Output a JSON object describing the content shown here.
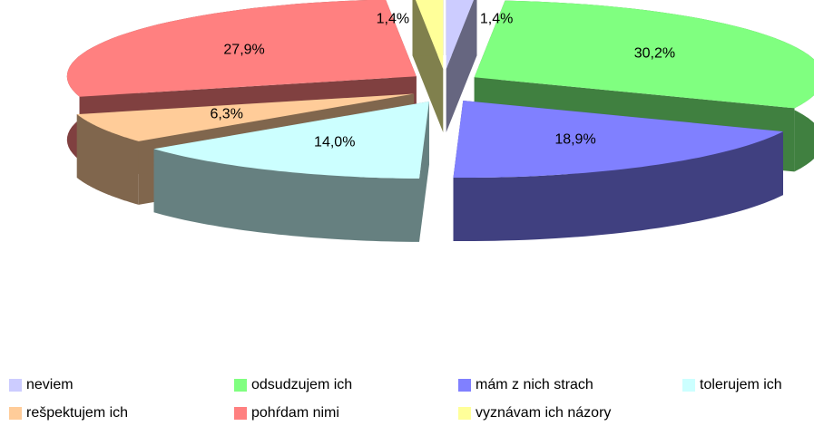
{
  "chart_data": {
    "type": "pie3d",
    "categories": [
      "neviem",
      "odsudzujem ich",
      "mám z nich strach",
      "tolerujem ich",
      "rešpektujem ich",
      "pohŕdam nimi",
      "vyznávam ich názory"
    ],
    "values": [
      1.4,
      30.2,
      18.9,
      14.0,
      6.3,
      27.9,
      1.4
    ],
    "value_labels": [
      "1,4%",
      "30,2%",
      "18,9%",
      "14,0%",
      "6,3%",
      "27,9%",
      "1,4%"
    ],
    "colors": [
      "#ccccff",
      "#80ff80",
      "#8080ff",
      "#ccffff",
      "#ffcc99",
      "#ff8080",
      "#ffff99"
    ],
    "legend": "bottom"
  }
}
